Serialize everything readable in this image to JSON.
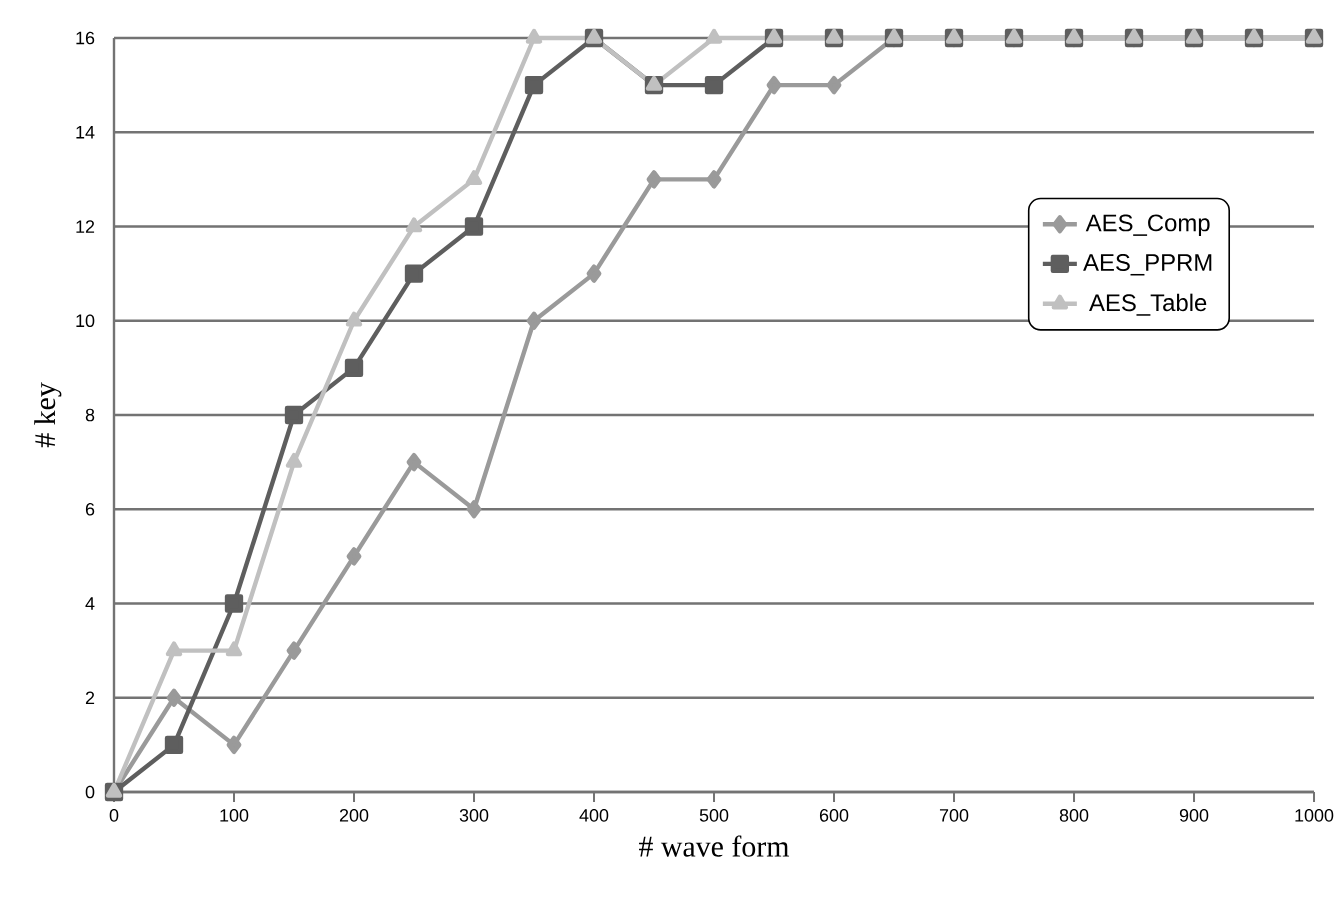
{
  "chart_data": {
    "type": "line",
    "xlabel": "# wave form",
    "ylabel": "# key",
    "x": [
      0,
      50,
      100,
      150,
      200,
      250,
      300,
      350,
      400,
      450,
      500,
      550,
      600,
      650,
      700,
      750,
      800,
      850,
      900,
      950,
      1000
    ],
    "series": [
      {
        "name": "AES_Comp",
        "color": "#9a9a9a",
        "marker": "diamond",
        "values": [
          0,
          2,
          1,
          3,
          5,
          7,
          6,
          10,
          11,
          13,
          13,
          15,
          15,
          16,
          16,
          16,
          16,
          16,
          16,
          16,
          16
        ]
      },
      {
        "name": "AES_PPRM",
        "color": "#5e5e5e",
        "marker": "square",
        "values": [
          0,
          1,
          4,
          8,
          9,
          11,
          12,
          15,
          16,
          15,
          15,
          16,
          16,
          16,
          16,
          16,
          16,
          16,
          16,
          16,
          16
        ]
      },
      {
        "name": "AES_Table",
        "color": "#c0c0c0",
        "marker": "triangle",
        "values": [
          0,
          3,
          3,
          7,
          10,
          12,
          13,
          16,
          16,
          15,
          16,
          16,
          16,
          16,
          16,
          16,
          16,
          16,
          16,
          16,
          16
        ]
      }
    ],
    "xlim": [
      0,
      1000
    ],
    "xticks": [
      0,
      100,
      200,
      300,
      400,
      500,
      600,
      700,
      800,
      900,
      1000
    ],
    "ylim": [
      0,
      16
    ],
    "yticks": [
      0,
      2,
      4,
      6,
      8,
      10,
      12,
      14,
      16
    ],
    "grid": "y",
    "legend": "right",
    "line_style": "solid"
  }
}
